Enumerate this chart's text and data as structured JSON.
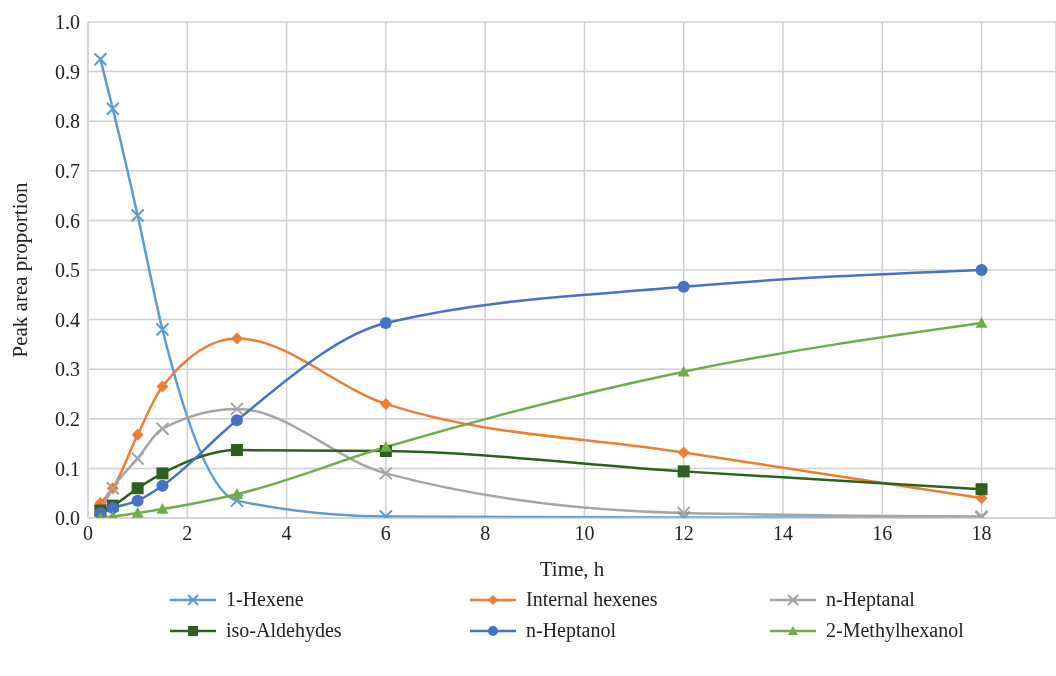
{
  "chart_data": {
    "type": "line",
    "xlabel": "Time, h",
    "ylabel": "Peak area proportion",
    "x": [
      0.25,
      0.5,
      1,
      1.5,
      3,
      6,
      12,
      18
    ],
    "series": [
      {
        "name": "1-Hexene",
        "color": "#5b9bd5",
        "marker": "cross",
        "values": [
          0.925,
          0.825,
          0.61,
          0.38,
          0.035,
          0.003,
          0.001,
          0.001
        ]
      },
      {
        "name": "Internal hexenes",
        "color": "#ed7d31",
        "marker": "diamond",
        "values": [
          0.03,
          0.06,
          0.168,
          0.265,
          0.362,
          0.23,
          0.132,
          0.04
        ]
      },
      {
        "name": "n-Heptanal",
        "color": "#a5a5a5",
        "marker": "cross",
        "values": [
          0.015,
          0.06,
          0.12,
          0.18,
          0.22,
          0.09,
          0.01,
          0.003
        ]
      },
      {
        "name": "iso-Aldehydes",
        "color": "#2e5f1e",
        "marker": "square",
        "values": [
          0.015,
          0.025,
          0.06,
          0.09,
          0.137,
          0.135,
          0.094,
          0.058
        ]
      },
      {
        "name": "n-Heptanol",
        "color": "#4472c4",
        "marker": "circle",
        "values": [
          0.01,
          0.02,
          0.035,
          0.065,
          0.197,
          0.393,
          0.466,
          0.5
        ]
      },
      {
        "name": "2-Methylhexanol",
        "color": "#70ad47",
        "marker": "triangle",
        "values": [
          0,
          0.003,
          0.01,
          0.018,
          0.048,
          0.143,
          0.295,
          0.393
        ]
      }
    ],
    "xlim": [
      0,
      19.5
    ],
    "xticks": [
      0,
      2,
      4,
      6,
      8,
      10,
      12,
      14,
      16,
      18
    ],
    "ylim": [
      0,
      1
    ],
    "yticks": [
      {
        "value": 0,
        "label": "0.0"
      },
      0.1,
      0.2,
      0.3,
      0.4,
      0.5,
      0.6,
      0.7,
      0.8,
      0.9,
      {
        "value": 1,
        "label": "1.0"
      }
    ],
    "grid": true,
    "legend": "bottom",
    "line_style": "solid"
  }
}
